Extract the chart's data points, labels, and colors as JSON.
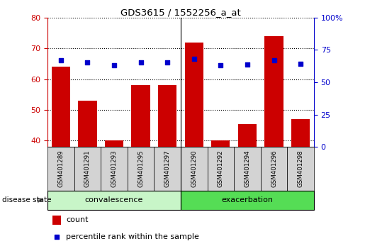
{
  "title": "GDS3615 / 1552256_a_at",
  "samples": [
    "GSM401289",
    "GSM401291",
    "GSM401293",
    "GSM401295",
    "GSM401297",
    "GSM401290",
    "GSM401292",
    "GSM401294",
    "GSM401296",
    "GSM401298"
  ],
  "counts": [
    64,
    53,
    40,
    58,
    58,
    72,
    40,
    45.5,
    74,
    47
  ],
  "percentiles": [
    67,
    65.5,
    63,
    65.5,
    65.5,
    68,
    63,
    63.5,
    67,
    64.5
  ],
  "bar_color": "#cc0000",
  "dot_color": "#0000cc",
  "ylim_left": [
    38,
    80
  ],
  "ylim_right": [
    0,
    100
  ],
  "yticks_left": [
    40,
    50,
    60,
    70,
    80
  ],
  "yticks_right": [
    0,
    25,
    50,
    75,
    100
  ],
  "convalescence_color": "#c8f5c8",
  "exacerbation_color": "#55dd55",
  "tick_area_color": "#d3d3d3",
  "left_axis_color": "#cc0000",
  "right_axis_color": "#0000cc",
  "legend_count_label": "count",
  "legend_pct_label": "percentile rank within the sample",
  "n_conv": 5,
  "n_exac": 5
}
